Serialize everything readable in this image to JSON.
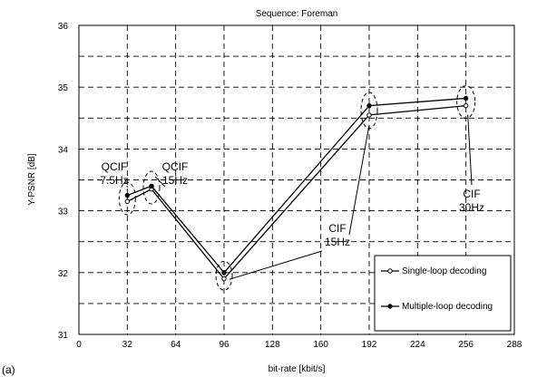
{
  "chart_data": {
    "type": "line",
    "title": "Sequence: Foreman",
    "xlabel": "bit-rate [kbit/s]",
    "ylabel": "Y-PSNR [dB]",
    "xlim": [
      0,
      288
    ],
    "ylim": [
      31,
      36
    ],
    "xticks": [
      0,
      32,
      64,
      96,
      128,
      160,
      192,
      224,
      256,
      288
    ],
    "yticks": [
      31,
      32,
      33,
      34,
      35,
      36
    ],
    "grid": true,
    "grid_style": "dashed",
    "legend_position": "bottom-right",
    "series": [
      {
        "name": "Single-loop decoding",
        "x": [
          32,
          48,
          96,
          192,
          256
        ],
        "y": [
          33.15,
          33.35,
          31.9,
          34.55,
          34.7
        ]
      },
      {
        "name": "Multiple-loop decoding",
        "x": [
          32,
          48,
          96,
          192,
          256
        ],
        "y": [
          33.25,
          33.4,
          32.0,
          34.7,
          34.82
        ]
      }
    ],
    "annotations": [
      {
        "lines": [
          "QCIF",
          "7.5Hz"
        ]
      },
      {
        "lines": [
          "QCIF",
          "15Hz"
        ]
      },
      {
        "lines": [
          "CIF",
          "15Hz"
        ]
      },
      {
        "lines": [
          "CIF",
          "30Hz"
        ]
      }
    ],
    "corner_label": "(a)"
  }
}
